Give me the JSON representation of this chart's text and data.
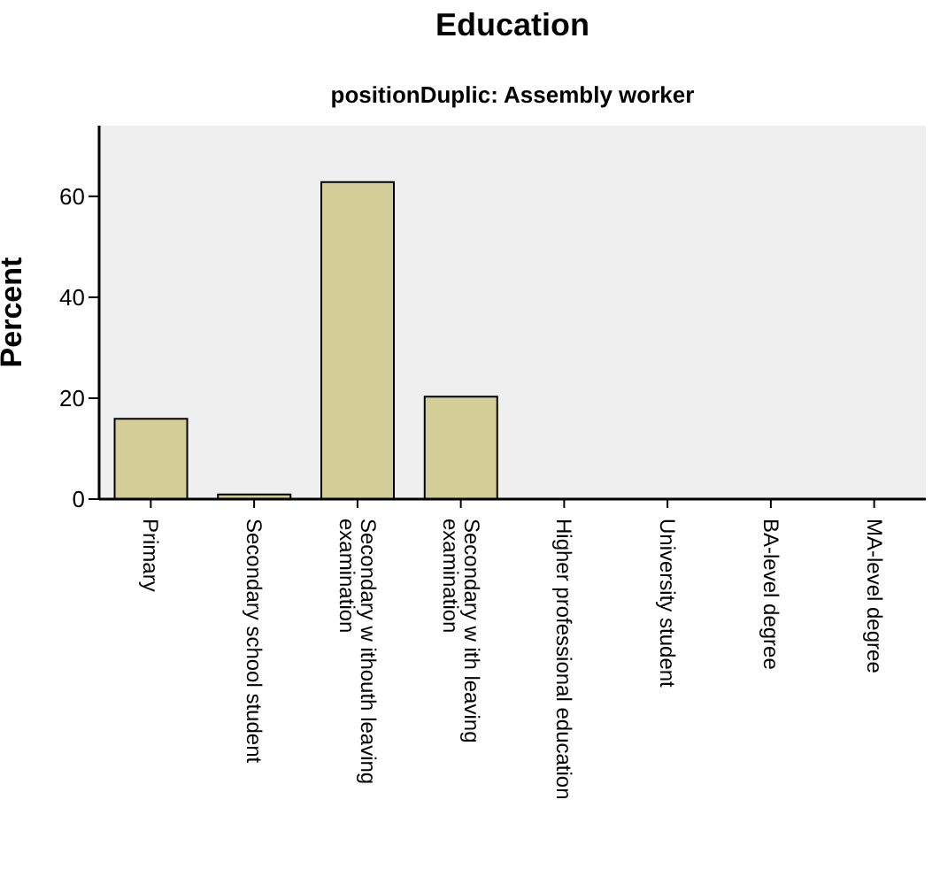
{
  "chart_data": {
    "type": "bar",
    "title": "Education",
    "subtitle": "positionDuplic: Assembly worker",
    "ylabel": "Percent",
    "categories": [
      "Primary",
      "Secondary school student",
      "Secondary w ithouth leaving examination",
      "Secondary w ith leaving examination",
      "Higher professional education",
      "University student",
      "BA-level degree",
      "MA-level degree"
    ],
    "values": [
      15.9,
      0.9,
      62.8,
      20.3,
      0,
      0,
      0,
      0
    ],
    "color": "#d3ce97",
    "ylim": [
      0,
      74
    ],
    "yticks": [
      0,
      20,
      40,
      60
    ]
  }
}
